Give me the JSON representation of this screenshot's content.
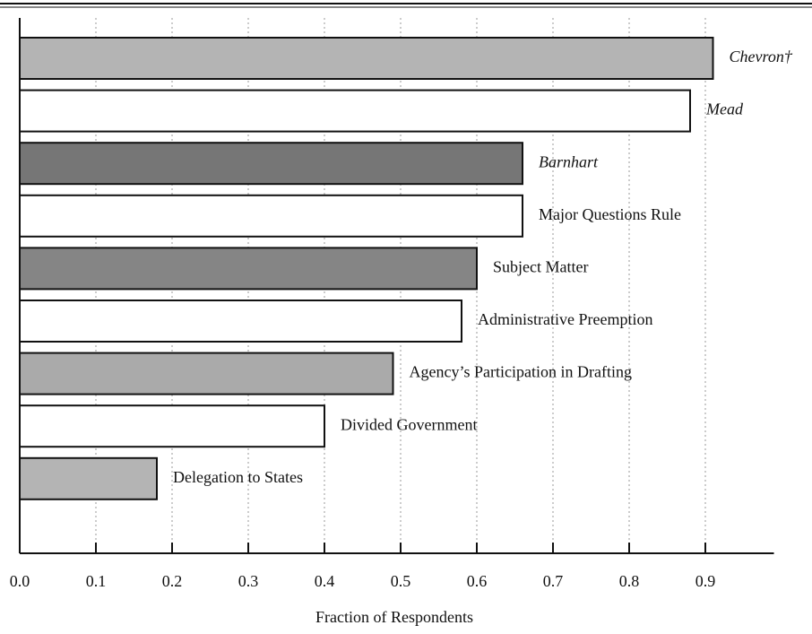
{
  "chart_data": {
    "type": "barh",
    "categories": [
      "Chevron†",
      "Mead",
      "Barnhart",
      "Major Questions Rule",
      "Subject Matter",
      "Administrative Preemption",
      "Agency’s Participation in Drafting",
      "Divided Government",
      "Delegation to States"
    ],
    "values": [
      0.91,
      0.88,
      0.66,
      0.66,
      0.6,
      0.58,
      0.49,
      0.4,
      0.18
    ],
    "colors": [
      "#b4b4b4",
      "#ffffff",
      "#767676",
      "#ffffff",
      "#858585",
      "#ffffff",
      "#aaaaaa",
      "#ffffff",
      "#b4b4b4"
    ],
    "label_styles": [
      "italic",
      "italic",
      "italic",
      "normal",
      "normal",
      "normal",
      "normal",
      "normal",
      "normal"
    ],
    "x_label": "Fraction of Respondents",
    "xlim": [
      0,
      0.99
    ],
    "xticks": [
      {
        "value": 0,
        "label": "0.0"
      },
      0.1,
      0.2,
      0.3,
      0.4,
      0.5,
      0.6,
      0.7,
      0.8,
      0.9
    ],
    "grid": true
  }
}
